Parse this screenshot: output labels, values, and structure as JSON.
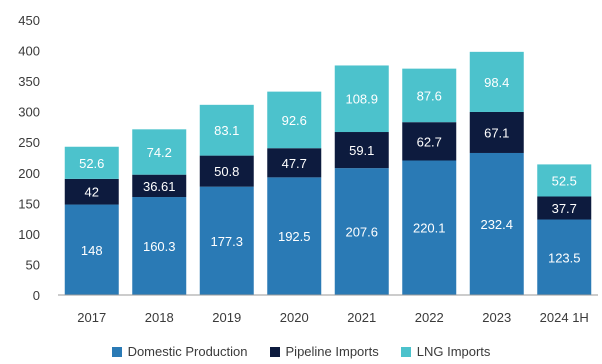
{
  "chart_data": {
    "type": "bar",
    "stacked": true,
    "categories": [
      "2017",
      "2018",
      "2019",
      "2020",
      "2021",
      "2022",
      "2023",
      "2024 1H"
    ],
    "series": [
      {
        "name": "Domestic Production",
        "color": "#2a7ab5",
        "values": [
          148,
          160.3,
          177.3,
          192.5,
          207.6,
          220.1,
          232.4,
          123.5
        ]
      },
      {
        "name": "Pipeline Imports",
        "color": "#0d1b3e",
        "values": [
          42,
          36.61,
          50.8,
          47.7,
          59.1,
          62.7,
          67.1,
          37.7
        ]
      },
      {
        "name": "LNG Imports",
        "color": "#4cc2cc",
        "values": [
          52.6,
          74.2,
          83.1,
          92.6,
          108.9,
          87.6,
          98.4,
          52.5
        ]
      }
    ],
    "labels": [
      [
        "148",
        "160.3",
        "177.3",
        "192.5",
        "207.6",
        "220.1",
        "232.4",
        "123.5"
      ],
      [
        "42",
        "36.61",
        "50.8",
        "47.7",
        "59.1",
        "62.7",
        "67.1",
        "37.7"
      ],
      [
        "52.6",
        "74.2",
        "83.1",
        "92.6",
        "108.9",
        "87.6",
        "98.4",
        "52.5"
      ]
    ],
    "yticks": [
      "0",
      "50",
      "100",
      "150",
      "200",
      "250",
      "300",
      "350",
      "400",
      "450"
    ],
    "ylim": [
      0,
      450
    ],
    "grid": false,
    "legend_position": "bottom"
  }
}
